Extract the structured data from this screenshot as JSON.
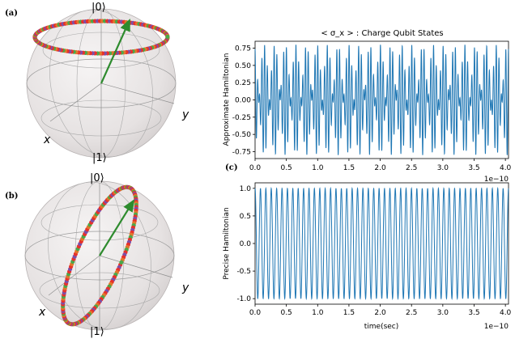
{
  "panels": {
    "a": {
      "label": "(a)",
      "ket0": "|0⟩",
      "ket1": "|1⟩",
      "xaxis": "x",
      "yaxis": "y"
    },
    "b": {
      "label": "(b)",
      "ket0": "|0⟩",
      "ket1": "|1⟩",
      "xaxis": "x",
      "yaxis": "y"
    },
    "c": {
      "label": "(c)"
    }
  },
  "colors": {
    "line": "#1f77b4",
    "arrow": "#2e8b2e",
    "ring_red": "#e8312a",
    "ring_orange": "#e0772b",
    "ring_purple": "#7b4fa8",
    "ring_green": "#4aa84a",
    "sphere": "#e9e6e6",
    "sphere_edge": "#9a9a9a"
  },
  "chart_data": [
    {
      "type": "line",
      "title": "< σ_x > : Charge Qubit States",
      "xlabel": "",
      "ylabel": "Approximate Hamiltonian",
      "x_range": [
        0,
        4.05e-10
      ],
      "ylim": [
        -0.85,
        0.85
      ],
      "x_ticks": [
        "0.0",
        "0.5",
        "1.0",
        "1.5",
        "2.0",
        "2.5",
        "3.0",
        "3.5",
        "4.0"
      ],
      "y_ticks": [
        "0.75",
        "0.50",
        "0.25",
        "0.00",
        "-0.25",
        "-0.50",
        "-0.75"
      ],
      "offset_label": "1e−10",
      "signal": {
        "form": "beat",
        "amplitude": 0.8,
        "carrier_cycles": 93,
        "envelope_cycles": 12
      }
    },
    {
      "type": "line",
      "title": "",
      "xlabel": "time(sec)",
      "ylabel": "Precise Hamiltonian",
      "x_range": [
        0,
        4.05e-10
      ],
      "ylim": [
        -1.1,
        1.1
      ],
      "x_ticks": [
        "0.0",
        "0.5",
        "1.0",
        "1.5",
        "2.0",
        "2.5",
        "3.0",
        "3.5",
        "4.0"
      ],
      "y_ticks": [
        "1.0",
        "0.5",
        "0.0",
        "-0.5",
        "-1.0"
      ],
      "offset_label": "1e−10",
      "signal": {
        "form": "cosine",
        "amplitude": 1.0,
        "cycles": 47
      }
    }
  ]
}
